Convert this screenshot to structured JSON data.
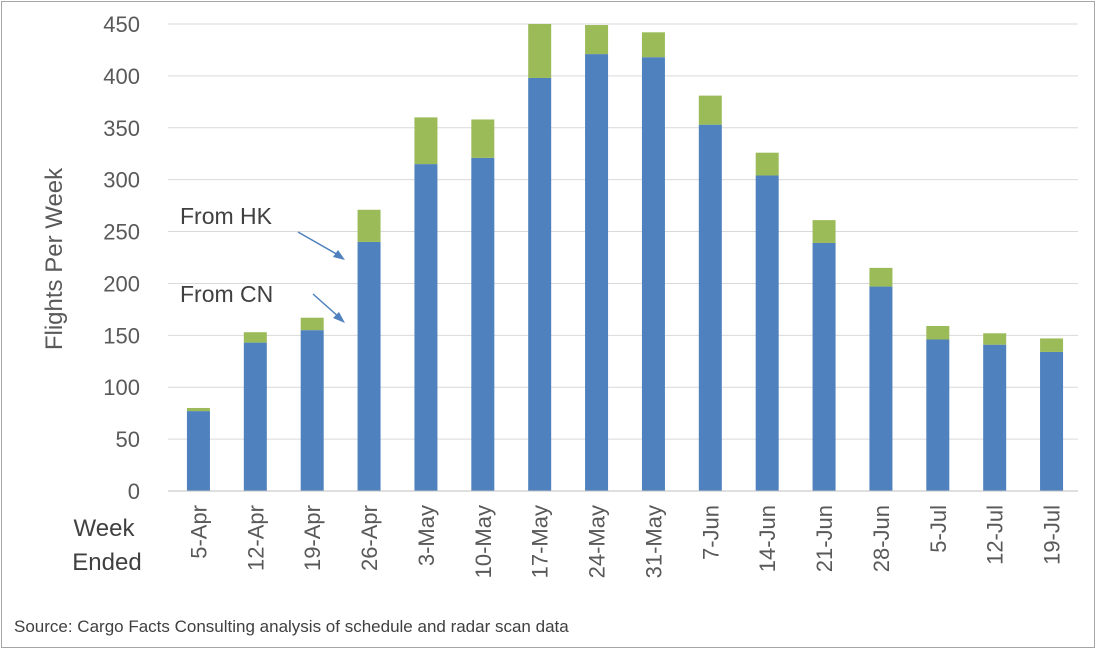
{
  "chart_data": {
    "type": "bar",
    "stacked": true,
    "categories": [
      "5-Apr",
      "12-Apr",
      "19-Apr",
      "26-Apr",
      "3-May",
      "10-May",
      "17-May",
      "24-May",
      "31-May",
      "7-Jun",
      "14-Jun",
      "21-Jun",
      "28-Jun",
      "5-Jul",
      "12-Jul",
      "19-Jul"
    ],
    "series": [
      {
        "name": "From CN",
        "color": "#4e81bd",
        "values": [
          77,
          143,
          155,
          240,
          315,
          321,
          398,
          421,
          418,
          353,
          304,
          239,
          197,
          146,
          141,
          134
        ]
      },
      {
        "name": "From HK",
        "color": "#9bbb59",
        "values": [
          3,
          10,
          12,
          31,
          45,
          37,
          52,
          28,
          24,
          28,
          22,
          22,
          18,
          13,
          11,
          13
        ]
      }
    ],
    "ylabel": "Flights Per Week",
    "xlabel_lines": [
      "Week",
      "Ended"
    ],
    "ylim": [
      0,
      450
    ],
    "yticks": [
      0,
      50,
      100,
      150,
      200,
      250,
      300,
      350,
      400,
      450
    ],
    "grid": true,
    "annotations": [
      "From HK",
      "From CN"
    ],
    "source": "Source: Cargo Facts Consulting analysis of schedule and radar scan data"
  }
}
